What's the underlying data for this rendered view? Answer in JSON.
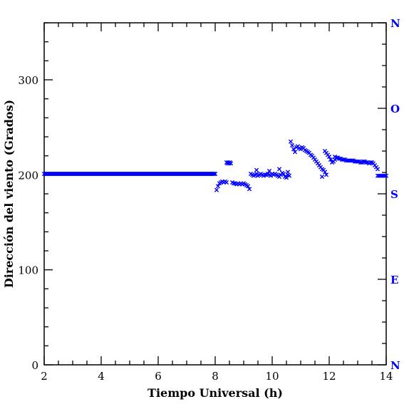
{
  "chart_data": {
    "type": "scatter",
    "title": "",
    "xlabel": "Tiempo Universal (h)",
    "ylabel": "Dirección del viento (Grados)",
    "xlim": [
      2,
      14
    ],
    "ylim": [
      0,
      360
    ],
    "x_ticks": [
      2,
      4,
      6,
      8,
      10,
      12,
      14
    ],
    "y_ticks": [
      0,
      100,
      200,
      300
    ],
    "right_axis_labels": [
      {
        "value": 0,
        "label": "N"
      },
      {
        "value": 90,
        "label": "E"
      },
      {
        "value": 180,
        "label": "S"
      },
      {
        "value": 270,
        "label": "O"
      },
      {
        "value": 360,
        "label": "N"
      }
    ],
    "marker": "×",
    "marker_color": "#0000ff",
    "axis_color": "#000000",
    "right_label_color": "#0000ff",
    "grid": false,
    "series": [
      {
        "segments": [
          {
            "x0": 2.0,
            "x1": 8.0,
            "step": 0.04,
            "y": 201
          },
          {
            "x0": 8.05,
            "x1": 8.4,
            "step": 0.05,
            "y": [
              184,
              188,
              191,
              192,
              193,
              192,
              193,
              192
            ]
          },
          {
            "x0": 8.4,
            "x1": 8.55,
            "step": 0.03,
            "y": [
              213,
              212,
              213,
              212,
              213,
              212
            ]
          },
          {
            "x0": 8.6,
            "x1": 9.2,
            "step": 0.05,
            "y": [
              192,
              191,
              191,
              190,
              191,
              190,
              191,
              190,
              191,
              190,
              189,
              188,
              185
            ]
          },
          {
            "x0": 9.25,
            "x1": 10.6,
            "step": 0.05,
            "y": [
              201,
              200,
              199,
              200,
              201,
              199,
              200,
              201,
              200,
              199,
              200,
              200,
              201,
              200,
              199,
              201,
              200,
              201,
              200,
              199,
              198,
              200,
              202,
              201,
              198,
              197,
              200,
              199
            ]
          },
          {
            "x0": 10.65,
            "x1": 11.9,
            "step": 0.05,
            "y": [
              235,
              231,
              227,
              224,
              229,
              230,
              228,
              227,
              229,
              228,
              226,
              225,
              224,
              223,
              221,
              220,
              218,
              216,
              214,
              212,
              210,
              208,
              206,
              205,
              203,
              200
            ]
          },
          {
            "x0": 11.85,
            "x1": 12.2,
            "step": 0.05,
            "y": [
              225,
              223,
              221,
              219,
              216,
              213,
              214,
              216
            ]
          },
          {
            "x0": 12.2,
            "x1": 13.7,
            "step": 0.05,
            "y": [
              219,
              218,
              218,
              217,
              217,
              216,
              216,
              216,
              215,
              215,
              215,
              215,
              215,
              215,
              214,
              214,
              214,
              214,
              213,
              213,
              214,
              214,
              213,
              213,
              212,
              213,
              213,
              212,
              210,
              208,
              206
            ]
          },
          {
            "x0": 13.7,
            "x1": 14.0,
            "step": 0.05,
            "y": 199
          }
        ],
        "extra_points": [
          [
            9.45,
            205
          ],
          [
            9.9,
            204
          ],
          [
            10.25,
            206
          ],
          [
            11.75,
            198
          ],
          [
            10.55,
            203
          ]
        ]
      }
    ]
  }
}
